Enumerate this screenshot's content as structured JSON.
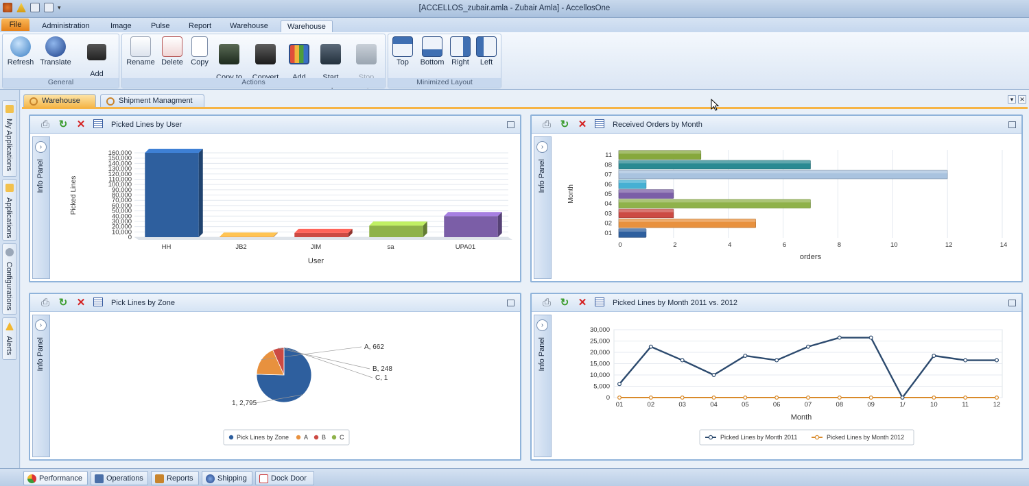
{
  "app": {
    "title": "[ACCELLOS_zubair.amla - Zubair Amla] - AccellosOne",
    "colors": {
      "file_tab": "#f0a040",
      "accent": "#f6b445",
      "panel_border": "#8fb3da"
    }
  },
  "menu_tabs": [
    "File",
    "Administration",
    "Image",
    "Pulse",
    "Report",
    "Warehouse",
    "Warehouse"
  ],
  "ribbon": {
    "groups": [
      {
        "name": "General",
        "buttons": [
          {
            "label": "Refresh",
            "icon": "refresh-icon"
          },
          {
            "label": "Translate",
            "icon": "globe-icon"
          },
          {
            "label": "Add\nVideo Help",
            "icon": "film-add-icon"
          }
        ]
      },
      {
        "name": "Actions",
        "buttons": [
          {
            "label": "Rename",
            "icon": "rename-icon"
          },
          {
            "label": "Delete",
            "icon": "delete-icon"
          },
          {
            "label": "Copy",
            "icon": "copy-icon"
          },
          {
            "label": "Copy to\nShared",
            "icon": "copy-to-shared-icon"
          },
          {
            "label": "Convert\nto Shared",
            "icon": "convert-to-shared-icon"
          },
          {
            "label": "Add\nKPI",
            "icon": "kpi-icon"
          },
          {
            "label": "Start\nMarquee",
            "icon": "start-marquee-icon"
          },
          {
            "label": "Stop\nMarquee",
            "icon": "stop-marquee-icon",
            "disabled": true
          }
        ]
      },
      {
        "name": "Minimized Layout",
        "buttons": [
          {
            "label": "Top",
            "icon": "layout-top-icon"
          },
          {
            "label": "Bottom",
            "icon": "layout-bottom-icon"
          },
          {
            "label": "Right",
            "icon": "layout-right-icon"
          },
          {
            "label": "Left",
            "icon": "layout-left-icon"
          }
        ]
      }
    ]
  },
  "side_tabs": [
    "My Applications",
    "Applications",
    "Configurations",
    "Alerts"
  ],
  "workspace_tabs": [
    "Warehouse",
    "Shipment Managment"
  ],
  "info_panel_label": "Info Panel",
  "panels": [
    {
      "title": "Picked Lines by User"
    },
    {
      "title": "Received Orders by Month"
    },
    {
      "title": "Pick Lines by Zone"
    },
    {
      "title": "Picked Lines by Month 2011 vs. 2012"
    }
  ],
  "bottom_tabs": [
    "Performance",
    "Operations",
    "Reports",
    "Shipping",
    "Dock Door"
  ],
  "chart_data": [
    {
      "type": "bar",
      "categories": [
        "HH",
        "JB2",
        "JIM",
        "sa",
        "UPA01"
      ],
      "values": [
        160000,
        1000,
        8000,
        22000,
        40000
      ],
      "colors": [
        "#2e5f9e",
        "#e8913e",
        "#cc4a43",
        "#8fb24a",
        "#7b5ea7"
      ],
      "xlabel": "User",
      "ylabel": "Picked Lines",
      "ylim": [
        0,
        160000
      ],
      "yticks": [
        "0",
        "10,000",
        "20,000",
        "30,000",
        "40,000",
        "50,000",
        "60,000",
        "70,000",
        "80,000",
        "90,000",
        "100,000",
        "110,000",
        "120,000",
        "130,000",
        "140,000",
        "150,000",
        "160,000"
      ],
      "grid": true
    },
    {
      "type": "bar",
      "orientation": "horizontal",
      "categories": [
        "01",
        "02",
        "03",
        "04",
        "05",
        "06",
        "07",
        "08",
        "11"
      ],
      "values": [
        1,
        5,
        2,
        7,
        2,
        1,
        12,
        7,
        3
      ],
      "colors": [
        "#2e5f9e",
        "#e8913e",
        "#cc4a43",
        "#8fb24a",
        "#7b5ea7",
        "#46b0d3",
        "#a9c3df",
        "#2a8a92",
        "#86a83c"
      ],
      "xlabel": "orders",
      "ylabel": "Month",
      "xlim": [
        0,
        14
      ],
      "xticks": [
        "0",
        "2",
        "4",
        "6",
        "8",
        "10",
        "12",
        "14"
      ],
      "grid": true
    },
    {
      "type": "pie",
      "series_name": "Pick Lines by Zone",
      "slices": [
        {
          "label": "1",
          "value": 2795,
          "color": "#2e5f9e",
          "label_text": "1, 2,795"
        },
        {
          "label": "A",
          "value": 662,
          "color": "#e8913e",
          "label_text": "A, 662"
        },
        {
          "label": "B",
          "value": 248,
          "color": "#cc4a43",
          "label_text": "B, 248"
        },
        {
          "label": "C",
          "value": 1,
          "color": "#8fb24a",
          "label_text": "C, 1"
        }
      ],
      "legend": [
        {
          "label": "Pick Lines by Zone",
          "color": "#2e5f9e"
        },
        {
          "label": "A",
          "color": "#e8913e"
        },
        {
          "label": "B",
          "color": "#cc4a43"
        },
        {
          "label": "C",
          "color": "#8fb24a"
        }
      ],
      "legend_position": "bottom"
    },
    {
      "type": "line",
      "x": [
        "01",
        "02",
        "03",
        "04",
        "05",
        "06",
        "07",
        "08",
        "09",
        "1/",
        "10",
        "11",
        "12"
      ],
      "series": [
        {
          "name": "Picked Lines by Month 2011",
          "values": [
            6000,
            22500,
            16500,
            10000,
            18500,
            16500,
            22500,
            26500,
            26500,
            0,
            18500,
            16500,
            16500
          ],
          "color": "#2c4a6e"
        },
        {
          "name": "Picked Lines by Month 2012",
          "values": [
            0,
            0,
            0,
            0,
            0,
            0,
            0,
            0,
            0,
            0,
            0,
            0,
            0
          ],
          "color": "#d98a2a"
        }
      ],
      "xlabel": "Month",
      "ylabel": "",
      "ylim": [
        0,
        30000
      ],
      "yticks": [
        "0",
        "5,000",
        "10,000",
        "15,000",
        "20,000",
        "25,000",
        "30,000"
      ],
      "grid": true,
      "legend_position": "bottom"
    }
  ]
}
